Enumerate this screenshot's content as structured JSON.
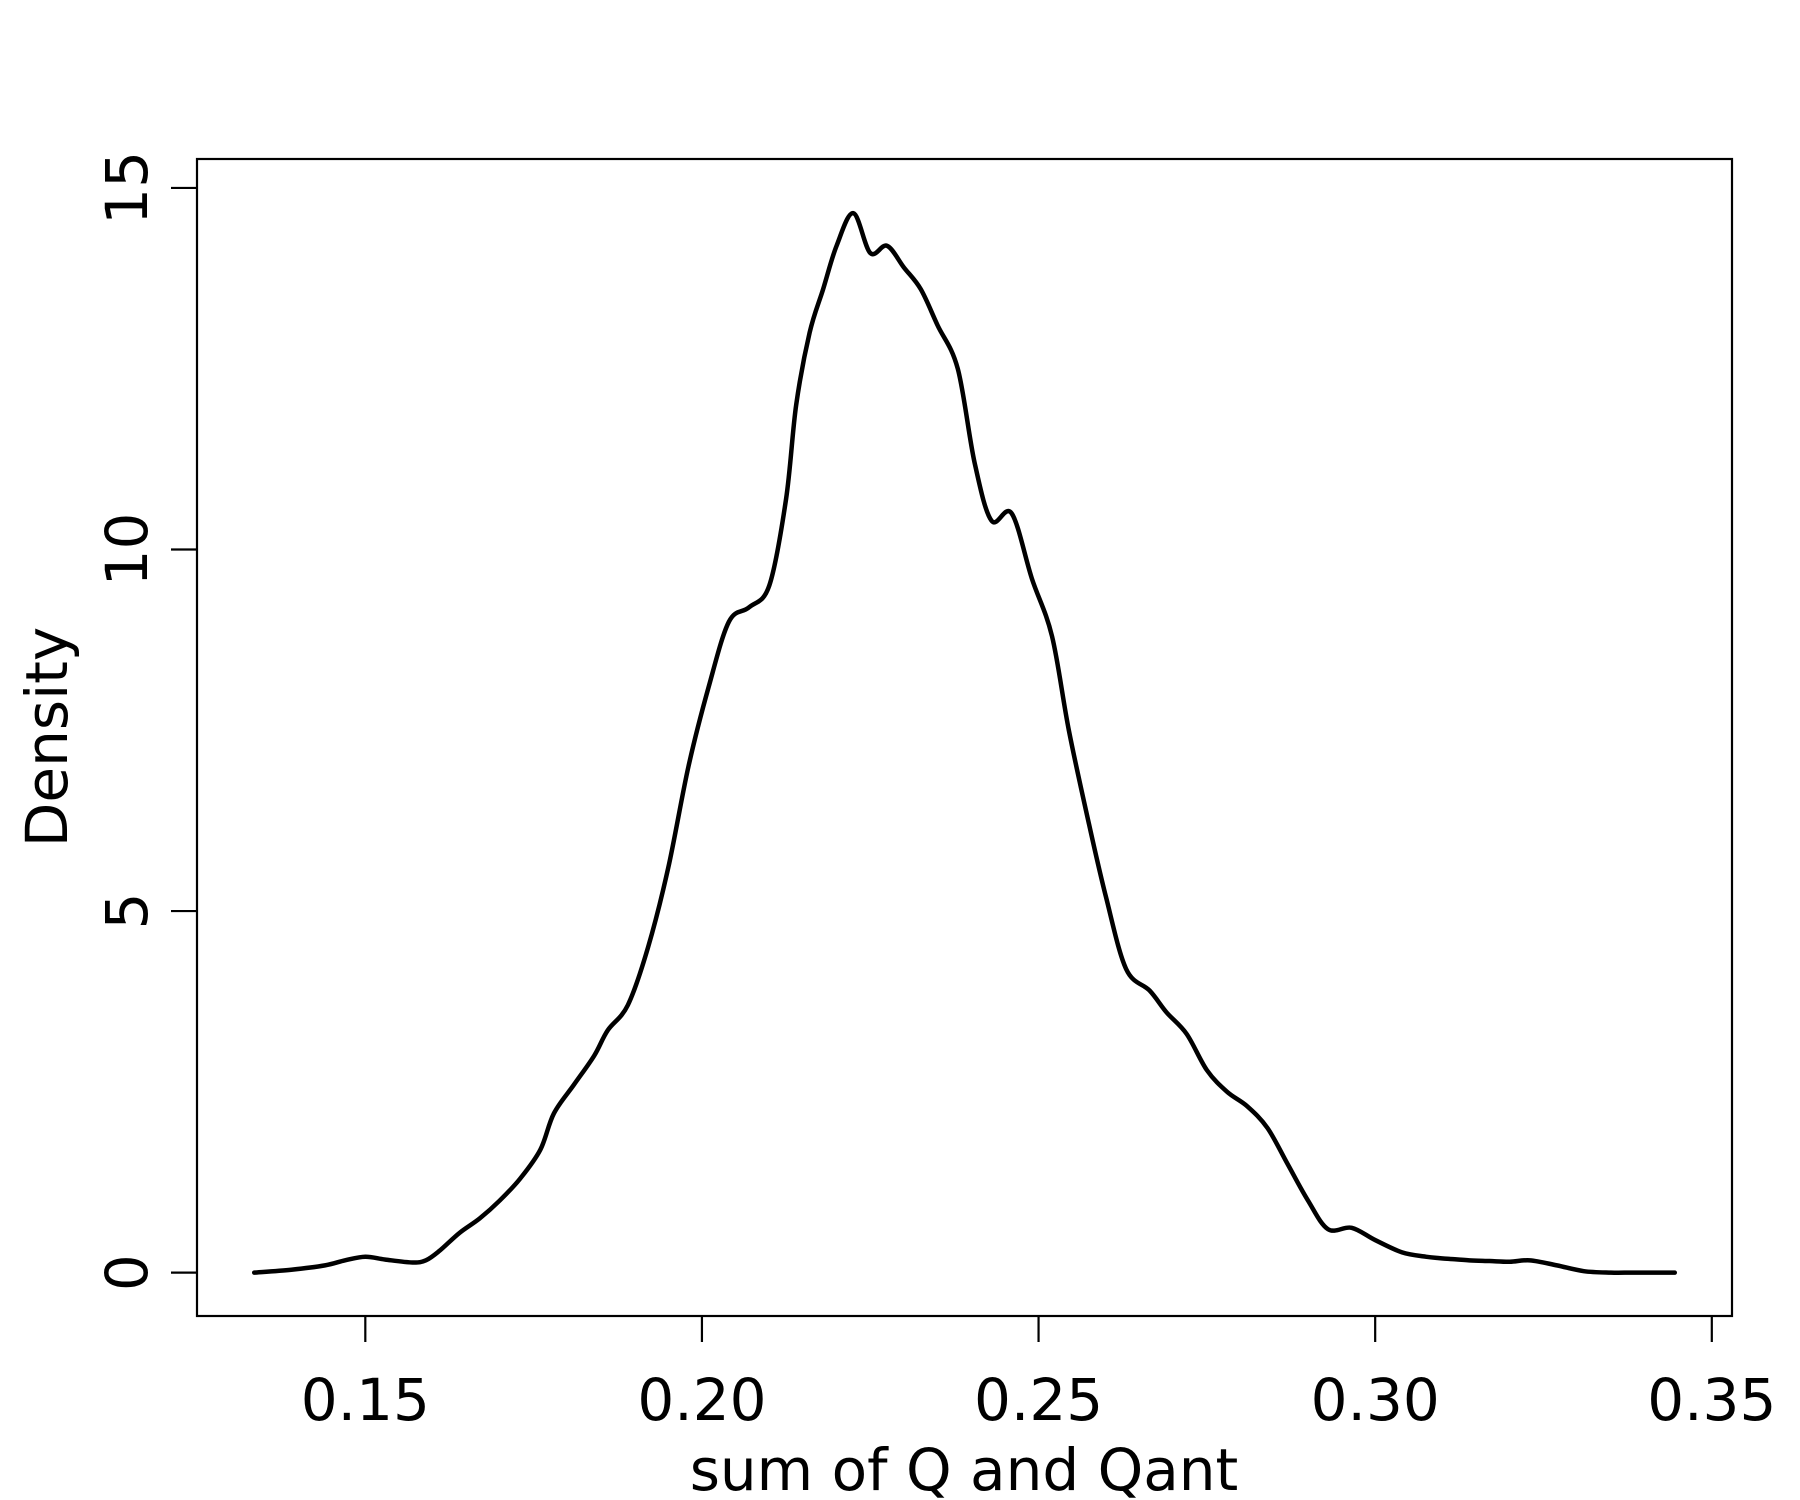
{
  "chart_data": {
    "type": "line",
    "title": "",
    "xlabel": "sum of Q and Qant",
    "ylabel": "Density",
    "xlim": [
      0.125,
      0.353
    ],
    "ylim": [
      -0.6,
      15.4
    ],
    "x_ticks": [
      0.15,
      0.2,
      0.25,
      0.3,
      0.35
    ],
    "x_tick_labels": [
      "0.15",
      "0.20",
      "0.25",
      "0.30",
      "0.35"
    ],
    "y_ticks": [
      0,
      5,
      10,
      15
    ],
    "y_tick_labels": [
      "0",
      "5",
      "10",
      "15"
    ],
    "grid": false,
    "legend": "none",
    "line_color": "#000000",
    "series": [
      {
        "x": [
          0.1335,
          0.139,
          0.144,
          0.147,
          0.15,
          0.153,
          0.157,
          0.159,
          0.161,
          0.164,
          0.167,
          0.17,
          0.173,
          0.176,
          0.178,
          0.181,
          0.184,
          0.186,
          0.189,
          0.192,
          0.195,
          0.198,
          0.201,
          0.204,
          0.207,
          0.21,
          0.2125,
          0.214,
          0.216,
          0.218,
          0.22,
          0.2225,
          0.225,
          0.2275,
          0.23,
          0.2325,
          0.235,
          0.238,
          0.2405,
          0.243,
          0.246,
          0.249,
          0.252,
          0.2545,
          0.2575,
          0.26,
          0.263,
          0.2665,
          0.269,
          0.272,
          0.275,
          0.278,
          0.281,
          0.284,
          0.287,
          0.29,
          0.293,
          0.2965,
          0.3,
          0.304,
          0.3075,
          0.3095,
          0.311,
          0.314,
          0.317,
          0.32,
          0.323,
          0.327,
          0.331,
          0.335,
          0.338,
          0.341,
          0.3445
        ],
        "y": [
          0.0,
          0.04,
          0.1,
          0.17,
          0.22,
          0.18,
          0.14,
          0.17,
          0.3,
          0.55,
          0.75,
          1.0,
          1.3,
          1.7,
          2.2,
          2.6,
          3.0,
          3.35,
          3.7,
          4.5,
          5.6,
          7.0,
          8.1,
          9.0,
          9.2,
          9.5,
          10.7,
          12.0,
          13.0,
          13.6,
          14.2,
          14.65,
          14.1,
          14.2,
          13.9,
          13.6,
          13.1,
          12.5,
          11.2,
          10.4,
          10.5,
          9.6,
          8.8,
          7.5,
          6.2,
          5.2,
          4.2,
          3.9,
          3.6,
          3.3,
          2.8,
          2.5,
          2.3,
          2.0,
          1.5,
          1.0,
          0.6,
          0.62,
          0.45,
          0.28,
          0.22,
          0.2,
          0.19,
          0.17,
          0.16,
          0.15,
          0.17,
          0.1,
          0.02,
          0.0,
          0.0,
          0.0,
          0.0
        ]
      }
    ]
  }
}
